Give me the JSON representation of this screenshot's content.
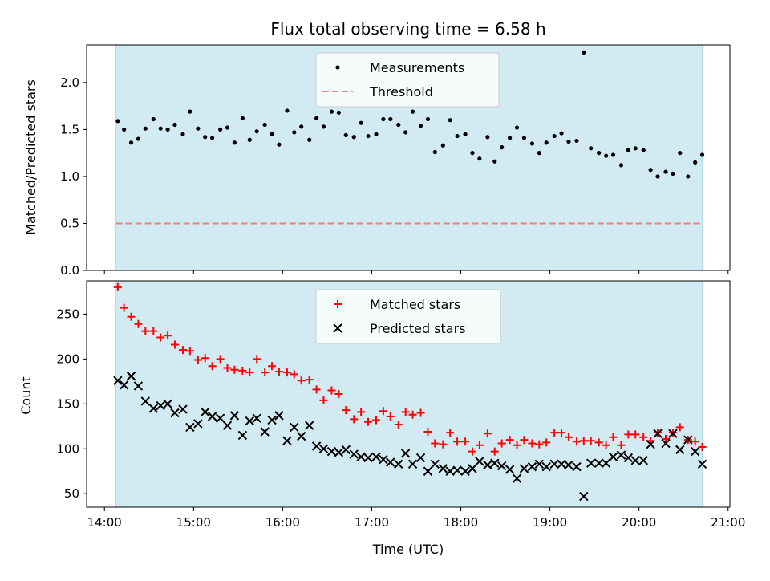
{
  "chart_data": [
    {
      "type": "scatter",
      "title": "Flux total observing time = 6.58 h",
      "ylabel": "Matched/Predicted stars",
      "xlabel": "",
      "xlim": [
        13.8,
        21.02
      ],
      "ylim": [
        0,
        2.4
      ],
      "yticks": [
        "0.0",
        "0.5",
        "1.0",
        "1.5",
        "2.0"
      ],
      "shaded_range": [
        14.13,
        20.71
      ],
      "shade_color": "#add8e6",
      "legend_position": "upper center",
      "series": [
        {
          "name": "Measurements",
          "marker": "dot",
          "color": "#000000",
          "x": [
            14.15,
            14.22,
            14.3,
            14.38,
            14.46,
            14.55,
            14.63,
            14.71,
            14.79,
            14.88,
            14.96,
            15.05,
            15.13,
            15.21,
            15.3,
            15.38,
            15.46,
            15.55,
            15.63,
            15.71,
            15.8,
            15.88,
            15.96,
            16.05,
            16.13,
            16.21,
            16.3,
            16.38,
            16.46,
            16.55,
            16.63,
            16.71,
            16.8,
            16.88,
            16.96,
            17.05,
            17.13,
            17.21,
            17.3,
            17.38,
            17.46,
            17.55,
            17.63,
            17.71,
            17.8,
            17.88,
            17.96,
            18.05,
            18.13,
            18.21,
            18.3,
            18.38,
            18.46,
            18.55,
            18.63,
            18.71,
            18.8,
            18.88,
            18.96,
            19.05,
            19.13,
            19.21,
            19.3,
            19.38,
            19.46,
            19.55,
            19.63,
            19.71,
            19.8,
            19.88,
            19.96,
            20.05,
            20.13,
            20.21,
            20.3,
            20.38,
            20.46,
            20.55,
            20.63,
            20.71
          ],
          "y": [
            1.59,
            1.5,
            1.36,
            1.4,
            1.51,
            1.61,
            1.51,
            1.5,
            1.55,
            1.45,
            1.69,
            1.51,
            1.42,
            1.41,
            1.5,
            1.52,
            1.36,
            1.62,
            1.39,
            1.48,
            1.55,
            1.45,
            1.34,
            1.7,
            1.47,
            1.53,
            1.39,
            1.62,
            1.53,
            1.69,
            1.68,
            1.44,
            1.42,
            1.57,
            1.43,
            1.45,
            1.61,
            1.61,
            1.55,
            1.47,
            1.69,
            1.54,
            1.61,
            1.26,
            1.33,
            1.6,
            1.43,
            1.45,
            1.25,
            1.19,
            1.42,
            1.16,
            1.31,
            1.41,
            1.52,
            1.41,
            1.35,
            1.25,
            1.36,
            1.43,
            1.46,
            1.37,
            1.38,
            2.32,
            1.3,
            1.25,
            1.22,
            1.23,
            1.12,
            1.28,
            1.3,
            1.28,
            1.07,
            1.0,
            1.05,
            1.03,
            1.25,
            1.0,
            1.15,
            1.23
          ]
        },
        {
          "name": "Threshold",
          "marker": "dashed-line",
          "color": "#f08080",
          "value": 0.5
        }
      ]
    },
    {
      "type": "scatter",
      "title": "",
      "ylabel": "Count",
      "xlabel": "Time (UTC)",
      "xlim": [
        13.8,
        21.02
      ],
      "ylim": [
        35,
        287
      ],
      "yticks": [
        "50",
        "100",
        "150",
        "200",
        "250"
      ],
      "xticks": [
        "14:00",
        "15:00",
        "16:00",
        "17:00",
        "18:00",
        "19:00",
        "20:00",
        "21:00"
      ],
      "xtick_values": [
        14,
        15,
        16,
        17,
        18,
        19,
        20,
        21
      ],
      "shaded_range": [
        14.13,
        20.71
      ],
      "shade_color": "#add8e6",
      "legend_position": "upper center",
      "series": [
        {
          "name": "Matched stars",
          "marker": "plus",
          "color": "#ff0000",
          "x": [
            14.15,
            14.22,
            14.3,
            14.38,
            14.46,
            14.55,
            14.63,
            14.71,
            14.79,
            14.88,
            14.96,
            15.05,
            15.13,
            15.21,
            15.3,
            15.38,
            15.46,
            15.55,
            15.63,
            15.71,
            15.8,
            15.88,
            15.96,
            16.05,
            16.13,
            16.21,
            16.3,
            16.38,
            16.46,
            16.55,
            16.63,
            16.71,
            16.8,
            16.88,
            16.96,
            17.05,
            17.13,
            17.21,
            17.3,
            17.38,
            17.46,
            17.55,
            17.63,
            17.71,
            17.8,
            17.88,
            17.96,
            18.05,
            18.13,
            18.21,
            18.3,
            18.38,
            18.46,
            18.55,
            18.63,
            18.71,
            18.8,
            18.88,
            18.96,
            19.05,
            19.13,
            19.21,
            19.3,
            19.38,
            19.46,
            19.55,
            19.63,
            19.71,
            19.8,
            19.88,
            19.96,
            20.05,
            20.13,
            20.21,
            20.3,
            20.38,
            20.46,
            20.55,
            20.63,
            20.71
          ],
          "y": [
            280,
            257,
            247,
            239,
            231,
            231,
            224,
            226,
            216,
            210,
            209,
            199,
            201,
            192,
            200,
            190,
            188,
            187,
            185,
            200,
            185,
            192,
            186,
            185,
            183,
            176,
            177,
            166,
            154,
            165,
            161,
            143,
            133,
            141,
            130,
            132,
            142,
            136,
            127,
            141,
            138,
            140,
            119,
            106,
            105,
            118,
            108,
            108,
            97,
            104,
            117,
            97,
            106,
            110,
            104,
            110,
            106,
            105,
            107,
            118,
            118,
            113,
            108,
            109,
            109,
            107,
            104,
            113,
            104,
            116,
            116,
            113,
            109,
            118,
            111,
            118,
            124,
            110,
            108,
            102
          ]
        },
        {
          "name": "Predicted stars",
          "marker": "x",
          "color": "#000000",
          "x": [
            14.15,
            14.22,
            14.3,
            14.38,
            14.46,
            14.55,
            14.63,
            14.71,
            14.79,
            14.88,
            14.96,
            15.05,
            15.13,
            15.21,
            15.3,
            15.38,
            15.46,
            15.55,
            15.63,
            15.71,
            15.8,
            15.88,
            15.96,
            16.05,
            16.13,
            16.21,
            16.3,
            16.38,
            16.46,
            16.55,
            16.63,
            16.71,
            16.8,
            16.88,
            16.96,
            17.05,
            17.13,
            17.21,
            17.3,
            17.38,
            17.46,
            17.55,
            17.63,
            17.71,
            17.8,
            17.88,
            17.96,
            18.05,
            18.13,
            18.21,
            18.3,
            18.38,
            18.46,
            18.55,
            18.63,
            18.71,
            18.8,
            18.88,
            18.96,
            19.05,
            19.13,
            19.21,
            19.3,
            19.38,
            19.46,
            19.55,
            19.63,
            19.71,
            19.8,
            19.88,
            19.96,
            20.05,
            20.13,
            20.21,
            20.3,
            20.38,
            20.46,
            20.55,
            20.63,
            20.71
          ],
          "y": [
            176,
            171,
            181,
            170,
            153,
            145,
            148,
            150,
            140,
            144,
            124,
            128,
            141,
            136,
            134,
            126,
            137,
            115,
            131,
            134,
            119,
            132,
            137,
            109,
            124,
            114,
            126,
            103,
            100,
            97,
            96,
            99,
            94,
            91,
            90,
            91,
            88,
            85,
            83,
            95,
            83,
            90,
            75,
            83,
            78,
            75,
            76,
            75,
            78,
            86,
            82,
            84,
            81,
            77,
            67,
            78,
            80,
            83,
            80,
            83,
            83,
            82,
            80,
            47,
            84,
            84,
            84,
            91,
            93,
            90,
            87,
            87,
            105,
            117,
            106,
            117,
            99,
            110,
            97,
            83
          ]
        }
      ]
    }
  ]
}
